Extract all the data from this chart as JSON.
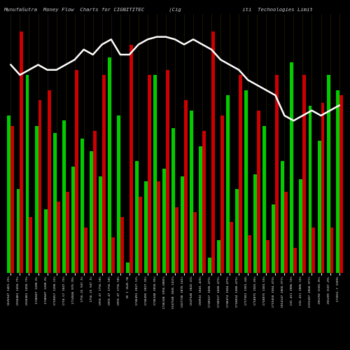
{
  "title": "MunufaSutra  Money Flow  Charts for CIGNITITEC        (Cig                    iti  Technologies Limit",
  "background_color": "#000000",
  "buy_color": "#00cc00",
  "sell_color": "#cc0000",
  "line_color": "#ffffff",
  "tick_color": "#ffffff",
  "title_color": "#cccccc",
  "grid_color": "#2a1f00",
  "categories": [
    "1626547 1401.25%",
    "1594481 1450.75%",
    "1594481 1450.75%",
    "1748687 1200.0%",
    "1748687 1200.0%",
    "1710057 1200.15%",
    "1710.57 1047.75%",
    "1714846 970.70%",
    "1756.25 947.5%",
    "1756.25 947.5%",
    "1959.47 1756.50%",
    "1959.47 1756.50%",
    "1959.47 1756.50%",
    "1K 1 1645.5K",
    "1746491 2027.12%",
    "1746495 2027.95%",
    "1746340 2050.95%",
    "1746340 1956.0005%",
    "1547548 1845.1415%",
    "1427748 1870.141%",
    "1547548 1842.41%",
    "150932 1841.425%",
    "1740527 1680.475%",
    "1740527 1680.475%",
    "1748474 1584.475%",
    "1718834 1380.475%",
    "1717581 1381.44%",
    "1718875 1583.05%",
    "1718875 1383.55%",
    "1719458 1584.475%",
    "2014147 2068.977%",
    "216.411 2086.55%",
    "216.411 2086.55%",
    "2191207 2068.977%",
    "205250 1504.35%",
    "201209 1507.29%",
    "172051.7 1509%"
  ],
  "buy_values": [
    0.62,
    0.33,
    0.78,
    0.58,
    0.25,
    0.55,
    0.6,
    0.42,
    0.53,
    0.48,
    0.38,
    0.85,
    0.62,
    0.04,
    0.44,
    0.36,
    0.78,
    0.41,
    0.57,
    0.38,
    0.64,
    0.5,
    0.06,
    0.13,
    0.7,
    0.33,
    0.72,
    0.39,
    0.58,
    0.27,
    0.44,
    0.83,
    0.37,
    0.66,
    0.52,
    0.78,
    0.72
  ],
  "sell_values": [
    0.58,
    0.95,
    0.22,
    0.68,
    0.72,
    0.28,
    0.32,
    0.8,
    0.18,
    0.56,
    0.78,
    0.14,
    0.22,
    0.9,
    0.3,
    0.78,
    0.36,
    0.8,
    0.26,
    0.68,
    0.24,
    0.56,
    0.95,
    0.62,
    0.2,
    0.78,
    0.15,
    0.64,
    0.13,
    0.78,
    0.32,
    0.1,
    0.78,
    0.18,
    0.67,
    0.18,
    0.7
  ],
  "line_values": [
    0.82,
    0.78,
    0.8,
    0.82,
    0.8,
    0.8,
    0.82,
    0.84,
    0.88,
    0.86,
    0.9,
    0.92,
    0.86,
    0.86,
    0.9,
    0.92,
    0.93,
    0.93,
    0.92,
    0.9,
    0.92,
    0.9,
    0.88,
    0.84,
    0.82,
    0.8,
    0.76,
    0.74,
    0.72,
    0.7,
    0.62,
    0.6,
    0.62,
    0.64,
    0.62,
    0.64,
    0.66
  ]
}
